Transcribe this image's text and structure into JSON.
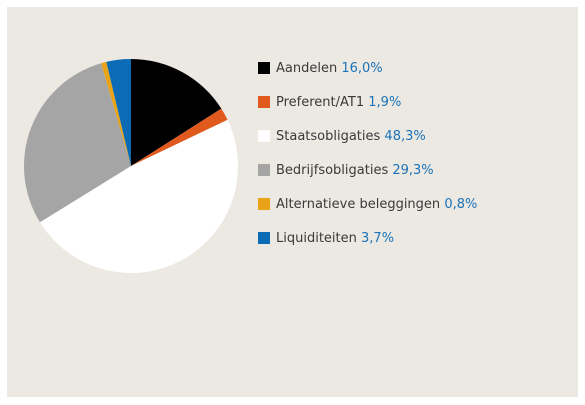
{
  "chart_data": {
    "type": "pie",
    "categories": [
      "Aandelen",
      "Preferent/AT1",
      "Staatsobligaties",
      "Bedrijfsobligaties",
      "Alternatieve beleggingen",
      "Liquiditeiten"
    ],
    "values": [
      16.0,
      1.9,
      48.3,
      29.3,
      0.8,
      3.7
    ],
    "value_labels": [
      "16,0%",
      "1,9%",
      "48,3%",
      "29,3%",
      "0,8%",
      "3,7%"
    ],
    "colors": [
      "#000000",
      "#e05a1e",
      "#ffffff",
      "#a5a5a5",
      "#e8a317",
      "#0b6cb5"
    ],
    "value_label_color": "#1b73b8",
    "legend": "right"
  }
}
